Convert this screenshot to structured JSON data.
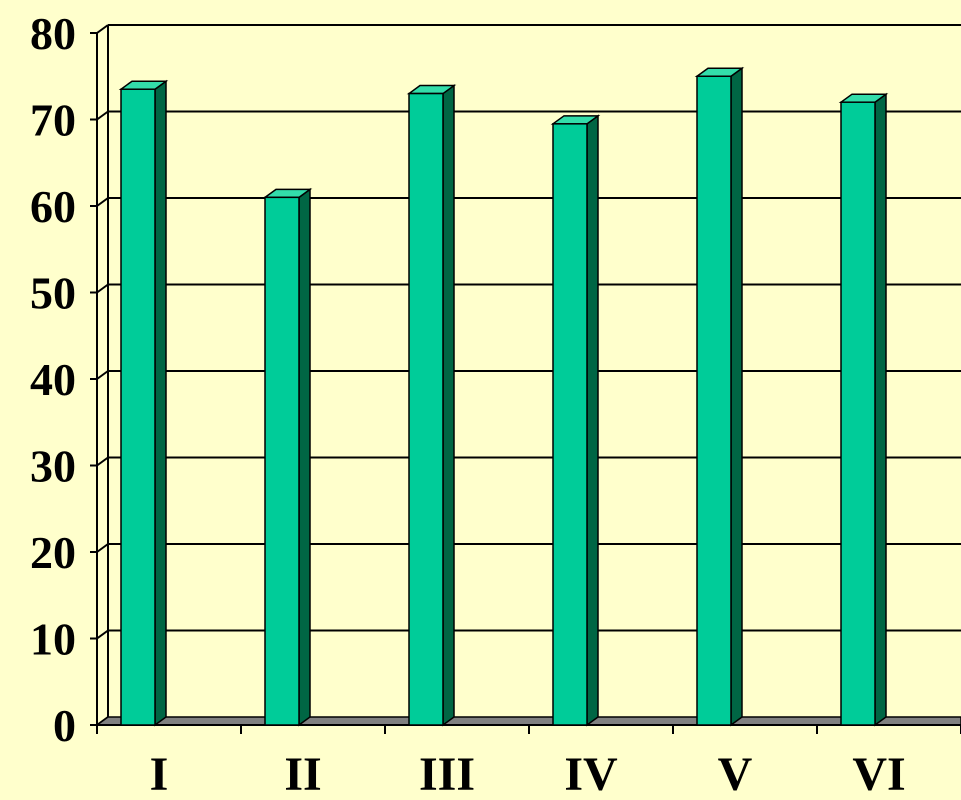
{
  "chart_data": {
    "type": "bar",
    "title": "",
    "xlabel": "",
    "ylabel": "",
    "categories": [
      "I",
      "II",
      "III",
      "IV",
      "V",
      "VI"
    ],
    "values": [
      73.5,
      61,
      73,
      69.5,
      75,
      72
    ],
    "ylim": [
      0,
      80
    ],
    "yticks": [
      0,
      10,
      20,
      30,
      40,
      50,
      60,
      70,
      80
    ],
    "ytick_labels": [
      "0",
      "10",
      "20",
      "30",
      "40",
      "50",
      "60",
      "70",
      "80"
    ],
    "grid": true,
    "three_d": true,
    "colors": {
      "background": "#FFFFCC",
      "bar_front": "#00CC99",
      "bar_side": "#006644",
      "bar_top": "#33DDAA",
      "floor": "#808080",
      "gridline": "#000000"
    }
  }
}
